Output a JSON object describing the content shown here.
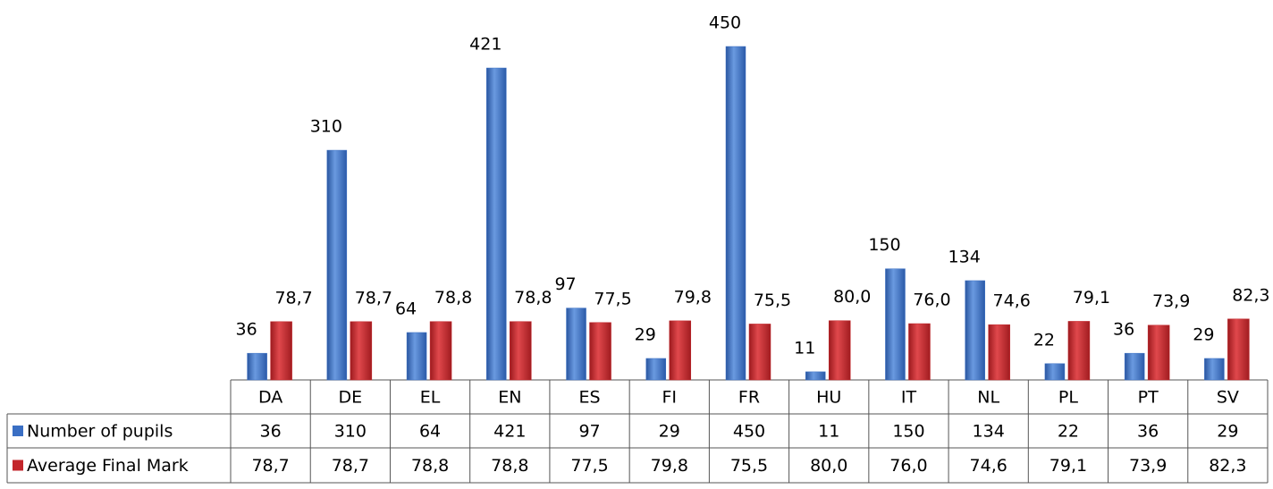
{
  "chart_data": {
    "type": "bar",
    "categories": [
      "DA",
      "DE",
      "EL",
      "EN",
      "ES",
      "FI",
      "FR",
      "HU",
      "IT",
      "NL",
      "PL",
      "PT",
      "SV"
    ],
    "series": [
      {
        "name": "Number of pupils",
        "color": "#3a6fc4",
        "values": [
          36,
          310,
          64,
          421,
          97,
          29,
          450,
          11,
          150,
          134,
          22,
          36,
          29
        ]
      },
      {
        "name": "Average Final Mark",
        "color": "#c3262b",
        "values": [
          78.7,
          78.7,
          78.8,
          78.8,
          77.5,
          79.8,
          75.5,
          80.0,
          76.0,
          74.6,
          79.1,
          73.9,
          82.3
        ],
        "value_labels": [
          "78,7",
          "78,7",
          "78,8",
          "78,8",
          "77,5",
          "79,8",
          "75,5",
          "80,0",
          "76,0",
          "74,6",
          "79,1",
          "73,9",
          "82,3"
        ]
      }
    ],
    "data_table": true
  }
}
